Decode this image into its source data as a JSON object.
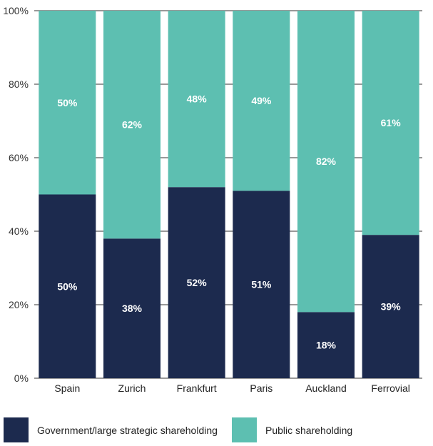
{
  "chart_data": {
    "type": "bar",
    "stacked": true,
    "categories": [
      "Spain",
      "Zurich",
      "Frankfurt",
      "Paris",
      "Auckland",
      "Ferrovial"
    ],
    "series": [
      {
        "name": "Government/large strategic shareholding",
        "color": "#1c2a4e",
        "values": [
          50,
          38,
          52,
          51,
          18,
          39
        ],
        "labels": [
          "50%",
          "38%",
          "52%",
          "51%",
          "18%",
          "39%"
        ]
      },
      {
        "name": "Public shareholding",
        "color": "#5dbfb1",
        "values": [
          50,
          62,
          48,
          49,
          82,
          61
        ],
        "labels": [
          "50%",
          "62%",
          "48%",
          "49%",
          "82%",
          "61%"
        ]
      }
    ],
    "ylim": [
      0,
      100
    ],
    "yticks": [
      "0%",
      "20%",
      "40%",
      "60%",
      "80%",
      "100%"
    ],
    "grid": true,
    "legend_position": "bottom"
  }
}
